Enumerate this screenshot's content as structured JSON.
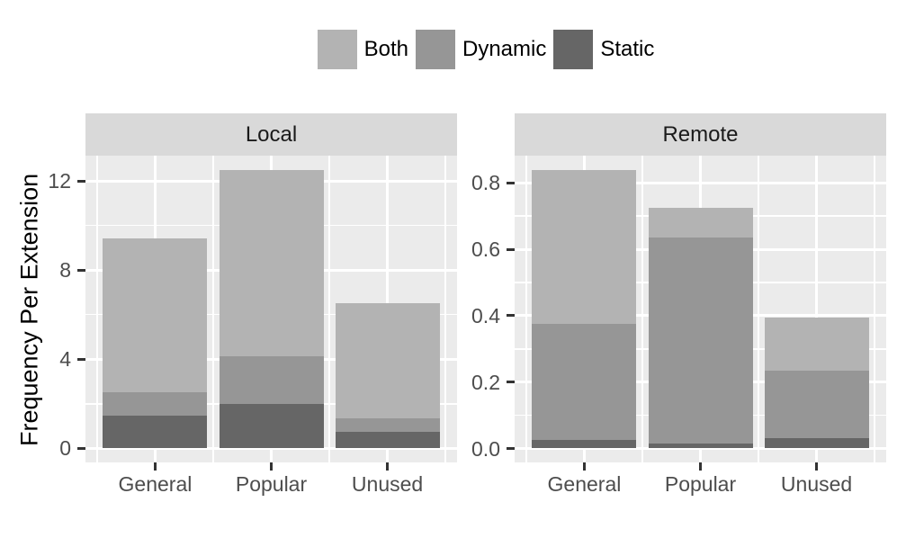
{
  "chart_data": {
    "type": "bar",
    "stacked": true,
    "title": "",
    "ylabel": "Frequency Per Extension",
    "xlabel": "",
    "categories": [
      "General",
      "Popular",
      "Unused"
    ],
    "legend": [
      {
        "label": "Both",
        "color": "#b3b3b3"
      },
      {
        "label": "Dynamic",
        "color": "#969696"
      },
      {
        "label": "Static",
        "color": "#666666"
      }
    ],
    "legend_position": "top",
    "grid": true,
    "stack_order_bottom_to_top": [
      "Static",
      "Dynamic",
      "Both"
    ],
    "x_domain": [
      0.4,
      3.6
    ],
    "bar_width_units": 0.9,
    "x_minor": [
      0.5,
      1.5,
      2.5,
      3.5
    ],
    "panels": [
      {
        "title": "Local",
        "ylim": [
          -0.63,
          13.13
        ],
        "yticks": [
          {
            "v": 0,
            "label": "0"
          },
          {
            "v": 4,
            "label": "4"
          },
          {
            "v": 8,
            "label": "8"
          },
          {
            "v": 12,
            "label": "12"
          }
        ],
        "yminor": [
          2,
          6,
          10
        ],
        "series": [
          {
            "name": "Static",
            "color": "#666666",
            "values": [
              1.45,
              2.0,
              0.75
            ]
          },
          {
            "name": "Dynamic",
            "color": "#969696",
            "values": [
              1.05,
              2.15,
              0.6
            ]
          },
          {
            "name": "Both",
            "color": "#b3b3b3",
            "values": [
              6.9,
              8.35,
              5.15
            ]
          }
        ],
        "totals": [
          9.4,
          12.5,
          6.5
        ]
      },
      {
        "title": "Remote",
        "ylim": [
          -0.042,
          0.882
        ],
        "yticks": [
          {
            "v": 0,
            "label": "0.0"
          },
          {
            "v": 0.2,
            "label": "0.2"
          },
          {
            "v": 0.4,
            "label": "0.4"
          },
          {
            "v": 0.6,
            "label": "0.6"
          },
          {
            "v": 0.8,
            "label": "0.8"
          }
        ],
        "yminor": [
          0.1,
          0.3,
          0.5,
          0.7
        ],
        "series": [
          {
            "name": "Static",
            "color": "#666666",
            "values": [
              0.025,
              0.015,
              0.03
            ]
          },
          {
            "name": "Dynamic",
            "color": "#969696",
            "values": [
              0.35,
              0.62,
              0.205
            ]
          },
          {
            "name": "Both",
            "color": "#b3b3b3",
            "values": [
              0.465,
              0.09,
              0.16
            ]
          }
        ],
        "totals": [
          0.84,
          0.725,
          0.395
        ]
      }
    ],
    "colors": {
      "panel_bg": "#ebebeb",
      "strip_bg": "#d9d9d9",
      "gridline": "#ffffff",
      "tick_mark": "#333333",
      "tick_label": "#4d4d4d",
      "strip_text": "#1a1a1a",
      "text": "#000000"
    }
  }
}
